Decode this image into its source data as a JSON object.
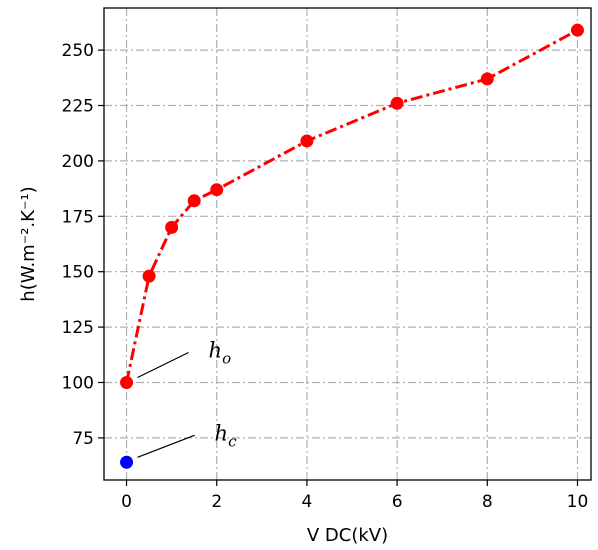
{
  "chart_data": {
    "type": "scatter",
    "xlabel": "V DC(kV)",
    "ylabel": "h(W.m⁻².K⁻¹)",
    "xlim": [
      -0.5,
      10.3
    ],
    "ylim": [
      56,
      269
    ],
    "xticks": [
      0,
      2,
      4,
      6,
      8,
      10
    ],
    "yticks": [
      75,
      100,
      125,
      150,
      175,
      200,
      225,
      250
    ],
    "grid": true,
    "series": [
      {
        "style": "dash-dot line with circle markers",
        "color": "#ff0000",
        "x": [
          0,
          0.5,
          1,
          1.5,
          2,
          4,
          6,
          8,
          10
        ],
        "y": [
          100,
          148,
          170,
          182,
          187,
          209,
          226,
          237,
          259
        ]
      },
      {
        "style": "single circle marker",
        "color": "#0000ff",
        "x": [
          0
        ],
        "y": [
          64
        ]
      }
    ],
    "annotations": [
      {
        "base": "h",
        "sub": "o"
      },
      {
        "base": "h",
        "sub": "c"
      }
    ]
  }
}
